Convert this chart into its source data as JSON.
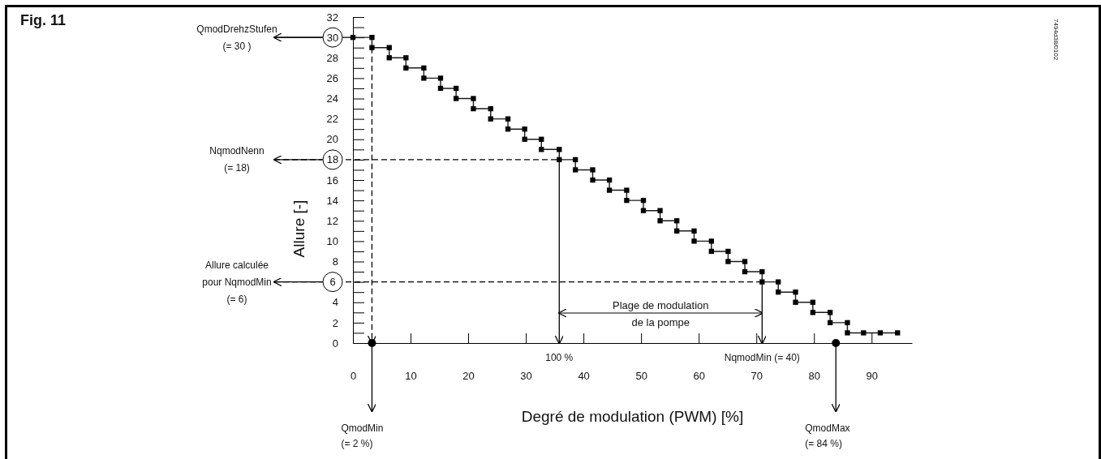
{
  "chart_data": {
    "type": "line",
    "title": "Fig. 11",
    "xlabel": "Degré de modulation (PWM) [%]",
    "ylabel": "Allure [-]",
    "xlim": [
      0,
      97
    ],
    "xticks": [
      0,
      10,
      20,
      30,
      40,
      50,
      60,
      70,
      80,
      90
    ],
    "ylim": [
      0,
      32
    ],
    "yticks": [
      0,
      {
        "value": 1,
        "label": null
      },
      2,
      {
        "value": 3,
        "label": null
      },
      4,
      {
        "value": 5,
        "label": null
      },
      6,
      {
        "value": 7,
        "label": null
      },
      8,
      {
        "value": 9,
        "label": null
      },
      10,
      {
        "value": 11,
        "label": null
      },
      12,
      {
        "value": 13,
        "label": null
      },
      14,
      {
        "value": 15,
        "label": null
      },
      16,
      {
        "value": 17,
        "label": null
      },
      18,
      {
        "value": 19,
        "label": null
      },
      20,
      {
        "value": 21,
        "label": null
      },
      22,
      {
        "value": 23,
        "label": null
      },
      24,
      {
        "value": 25,
        "label": null
      },
      26,
      {
        "value": 27,
        "label": null
      },
      28,
      {
        "value": 29,
        "label": null
      },
      30,
      {
        "value": 31,
        "label": null
      },
      32
    ],
    "grid": false,
    "marker": "square",
    "line_style": "solid",
    "series": [
      {
        "color": "#1a1a1a",
        "x": [
          0,
          3.3,
          3.3,
          6.3,
          6.3,
          9.2,
          9.2,
          12.3,
          12.3,
          15.2,
          15.2,
          17.9,
          17.9,
          20.9,
          20.9,
          23.9,
          23.9,
          26.9,
          26.9,
          29.8,
          29.8,
          32.7,
          32.7,
          35.8,
          35.8,
          38.6,
          38.6,
          41.6,
          41.6,
          44.5,
          44.5,
          47.5,
          47.5,
          50.4,
          50.4,
          53.3,
          53.3,
          56.2,
          56.2,
          59.2,
          59.2,
          62.2,
          62.2,
          65.1,
          65.1,
          68.0,
          68.0,
          71.0,
          71.0,
          73.8,
          73.8,
          76.8,
          76.8,
          79.8,
          79.8,
          82.8,
          82.8,
          85.8,
          85.8,
          88.6,
          91.5,
          94.5
        ],
        "values": [
          30,
          30,
          29,
          29,
          28,
          28,
          27,
          27,
          26,
          26,
          25,
          25,
          24,
          24,
          23,
          23,
          22,
          22,
          21,
          21,
          20,
          20,
          19,
          19,
          18,
          18,
          17,
          17,
          16,
          16,
          15,
          15,
          14,
          14,
          13,
          13,
          12,
          12,
          11,
          11,
          10,
          10,
          9,
          9,
          8,
          8,
          7,
          7,
          6,
          6,
          5,
          5,
          4,
          4,
          3,
          3,
          2,
          2,
          1,
          1,
          1,
          1
        ]
      }
    ],
    "ref_lines": [
      {
        "axis": "y",
        "value": 30,
        "label": "QmodDrehzStufen\n(= 30 )"
      },
      {
        "axis": "y",
        "value": 18,
        "line_style": "dashed",
        "label": "NqmodNenn\n(= 18)"
      },
      {
        "axis": "y",
        "value": 6,
        "line_style": "dashed",
        "label": "Allure calculée\npour NqmodMin\n(= 6)"
      },
      {
        "axis": "x",
        "value": 3.3,
        "line_style": "dashed"
      },
      {
        "axis": "x",
        "value": 35.8
      },
      {
        "axis": "x",
        "value": 71.0
      }
    ],
    "annotations": [
      {
        "text": "100 %",
        "x": 35.8,
        "y": 0
      },
      {
        "text": "NqmodMin (= 40)",
        "x": 71.0,
        "y": 0
      },
      "Plage de modulation\nde la pompe",
      {
        "text": "QmodMin\n(= 2 %)",
        "x": 3.3,
        "y": 0
      },
      {
        "text": "QmodMax\n(= 84 %)",
        "x": 83.8,
        "y": 0
      },
      "7494d38/0102"
    ]
  }
}
